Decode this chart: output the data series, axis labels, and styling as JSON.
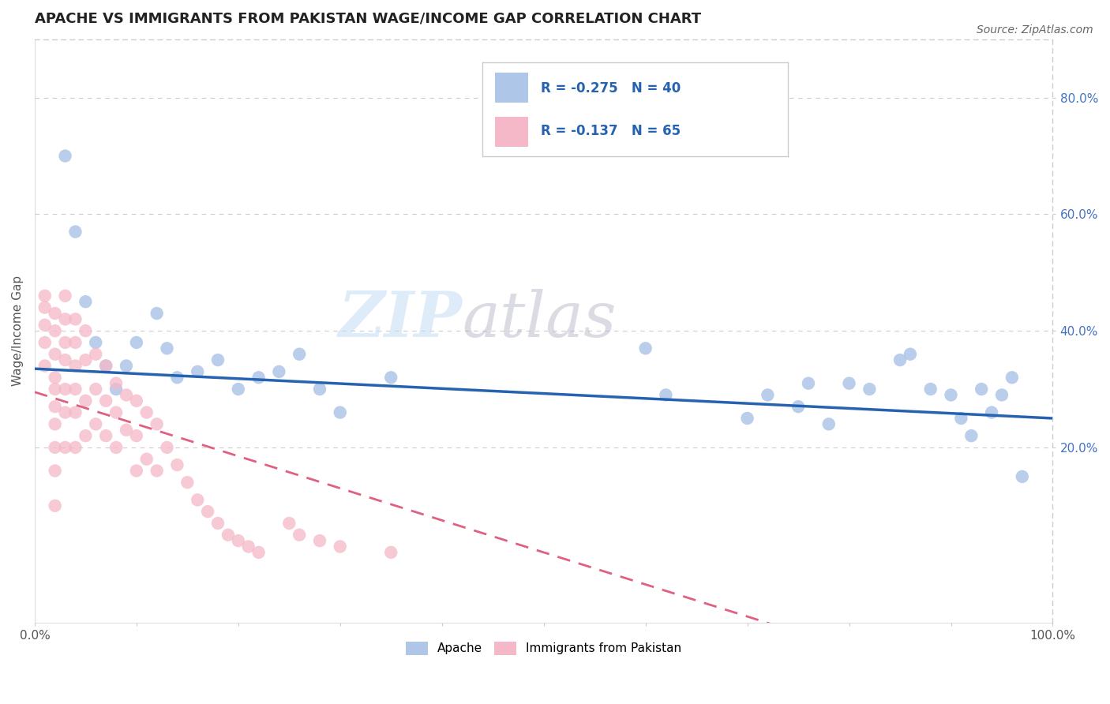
{
  "title": "APACHE VS IMMIGRANTS FROM PAKISTAN WAGE/INCOME GAP CORRELATION CHART",
  "source": "Source: ZipAtlas.com",
  "ylabel": "Wage/Income Gap",
  "xlim": [
    0.0,
    1.0
  ],
  "ylim": [
    -0.1,
    0.9
  ],
  "x_ticks": [
    0.0,
    0.1,
    0.2,
    0.3,
    0.4,
    0.5,
    0.6,
    0.7,
    0.8,
    0.9,
    1.0
  ],
  "y_ticks": [
    0.2,
    0.4,
    0.6,
    0.8
  ],
  "y_tick_labels": [
    "20.0%",
    "40.0%",
    "60.0%",
    "80.0%"
  ],
  "apache_color": "#aec6e8",
  "pakistan_color": "#f4b8c8",
  "apache_line_color": "#2563b0",
  "pakistan_line_color": "#e06080",
  "apache_r": -0.275,
  "apache_n": 40,
  "pakistan_r": -0.137,
  "pakistan_n": 65,
  "apache_points_x": [
    0.03,
    0.04,
    0.05,
    0.06,
    0.07,
    0.08,
    0.09,
    0.1,
    0.12,
    0.13,
    0.14,
    0.16,
    0.18,
    0.2,
    0.22,
    0.24,
    0.26,
    0.28,
    0.3,
    0.35,
    0.6,
    0.62,
    0.7,
    0.72,
    0.75,
    0.76,
    0.78,
    0.8,
    0.82,
    0.85,
    0.86,
    0.88,
    0.9,
    0.91,
    0.92,
    0.93,
    0.94,
    0.95,
    0.96,
    0.97
  ],
  "apache_points_y": [
    0.7,
    0.57,
    0.45,
    0.38,
    0.34,
    0.3,
    0.34,
    0.38,
    0.43,
    0.37,
    0.32,
    0.33,
    0.35,
    0.3,
    0.32,
    0.33,
    0.36,
    0.3,
    0.26,
    0.32,
    0.37,
    0.29,
    0.25,
    0.29,
    0.27,
    0.31,
    0.24,
    0.31,
    0.3,
    0.35,
    0.36,
    0.3,
    0.29,
    0.25,
    0.22,
    0.3,
    0.26,
    0.29,
    0.32,
    0.15
  ],
  "pakistan_points_x": [
    0.01,
    0.01,
    0.01,
    0.01,
    0.01,
    0.02,
    0.02,
    0.02,
    0.02,
    0.02,
    0.02,
    0.02,
    0.02,
    0.02,
    0.02,
    0.03,
    0.03,
    0.03,
    0.03,
    0.03,
    0.03,
    0.03,
    0.04,
    0.04,
    0.04,
    0.04,
    0.04,
    0.04,
    0.05,
    0.05,
    0.05,
    0.05,
    0.06,
    0.06,
    0.06,
    0.07,
    0.07,
    0.07,
    0.08,
    0.08,
    0.08,
    0.09,
    0.09,
    0.1,
    0.1,
    0.1,
    0.11,
    0.11,
    0.12,
    0.12,
    0.13,
    0.14,
    0.15,
    0.16,
    0.17,
    0.18,
    0.19,
    0.2,
    0.21,
    0.22,
    0.25,
    0.26,
    0.28,
    0.3,
    0.35
  ],
  "pakistan_points_y": [
    0.46,
    0.44,
    0.41,
    0.38,
    0.34,
    0.43,
    0.4,
    0.36,
    0.32,
    0.3,
    0.27,
    0.24,
    0.2,
    0.16,
    0.1,
    0.46,
    0.42,
    0.38,
    0.35,
    0.3,
    0.26,
    0.2,
    0.42,
    0.38,
    0.34,
    0.3,
    0.26,
    0.2,
    0.4,
    0.35,
    0.28,
    0.22,
    0.36,
    0.3,
    0.24,
    0.34,
    0.28,
    0.22,
    0.31,
    0.26,
    0.2,
    0.29,
    0.23,
    0.28,
    0.22,
    0.16,
    0.26,
    0.18,
    0.24,
    0.16,
    0.2,
    0.17,
    0.14,
    0.11,
    0.09,
    0.07,
    0.05,
    0.04,
    0.03,
    0.02,
    0.07,
    0.05,
    0.04,
    0.03,
    0.02
  ]
}
